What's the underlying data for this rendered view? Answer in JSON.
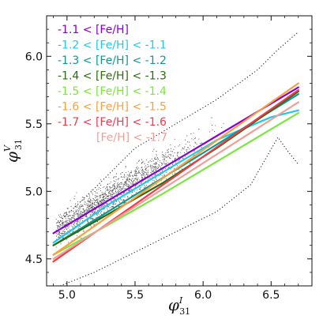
{
  "chart_data": {
    "type": "scatter",
    "xlabel": "φ",
    "xlabel_sup": "I",
    "xlabel_sub": "31",
    "ylabel": "φ",
    "ylabel_sup": "V",
    "ylabel_sub": "31",
    "xlim": [
      4.85,
      6.8
    ],
    "ylim": [
      4.3,
      6.3
    ],
    "xticks": [
      5.0,
      5.5,
      6.0,
      6.5
    ],
    "xtick_labels": [
      "5.0",
      "5.5",
      "6.0",
      "6.5"
    ],
    "yticks": [
      4.5,
      5.0,
      5.5,
      6.0
    ],
    "ytick_labels": [
      "4.5",
      "5.0",
      "5.5",
      "6.0"
    ],
    "grid": false,
    "legend_position": "top-left",
    "scatter_color": "#555555",
    "series": [
      {
        "name": "-1.1 < [Fe/H]",
        "color": "#8a00d4",
        "x": [
          4.9,
          6.7
        ],
        "y": [
          4.69,
          5.77
        ]
      },
      {
        "name": "-1.2 < [Fe/H] < -1.1",
        "color": "#22c8e8",
        "x": [
          4.9,
          5.3,
          5.7,
          6.1,
          6.5,
          6.7
        ],
        "y": [
          4.62,
          4.9,
          5.14,
          5.38,
          5.55,
          5.6
        ]
      },
      {
        "name": "-1.3 < [Fe/H] < -1.2",
        "color": "#0d9a94",
        "x": [
          4.9,
          6.7
        ],
        "y": [
          4.6,
          5.72
        ]
      },
      {
        "name": "-1.4 < [Fe/H] < -1.3",
        "color": "#2e6b0e",
        "x": [
          4.9,
          5.3,
          5.7,
          6.1,
          6.5,
          6.7
        ],
        "y": [
          4.6,
          4.83,
          5.06,
          5.32,
          5.6,
          5.74
        ]
      },
      {
        "name": "-1.5 < [Fe/H] < -1.4",
        "color": "#7ce63c",
        "x": [
          4.9,
          5.3,
          5.7,
          6.1,
          6.5,
          6.7
        ],
        "y": [
          4.53,
          4.75,
          4.98,
          5.22,
          5.46,
          5.58
        ]
      },
      {
        "name": "-1.6 < [Fe/H] < -1.5",
        "color": "#f6a040",
        "x": [
          4.9,
          6.7
        ],
        "y": [
          4.53,
          5.8
        ]
      },
      {
        "name": "-1.7 < [Fe/H] < -1.6",
        "color": "#ef3b4c",
        "x": [
          4.9,
          6.7
        ],
        "y": [
          4.48,
          5.75
        ]
      },
      {
        "name": "[Fe/H] < -1.7",
        "color": "#eda09a",
        "x": [
          4.9,
          6.7
        ],
        "y": [
          4.5,
          5.66
        ]
      }
    ],
    "envelope_upper": {
      "x": [
        4.95,
        5.2,
        5.5,
        5.8,
        6.1,
        6.4,
        6.55,
        6.7
      ],
      "y": [
        4.78,
        5.02,
        5.32,
        5.5,
        5.68,
        5.9,
        6.05,
        6.18
      ]
    },
    "envelope_lower": {
      "x": [
        4.95,
        5.2,
        5.5,
        5.8,
        6.1,
        6.35,
        6.55,
        6.62,
        6.7
      ],
      "y": [
        4.3,
        4.4,
        4.55,
        4.7,
        4.85,
        5.05,
        5.4,
        5.3,
        5.2
      ]
    }
  }
}
